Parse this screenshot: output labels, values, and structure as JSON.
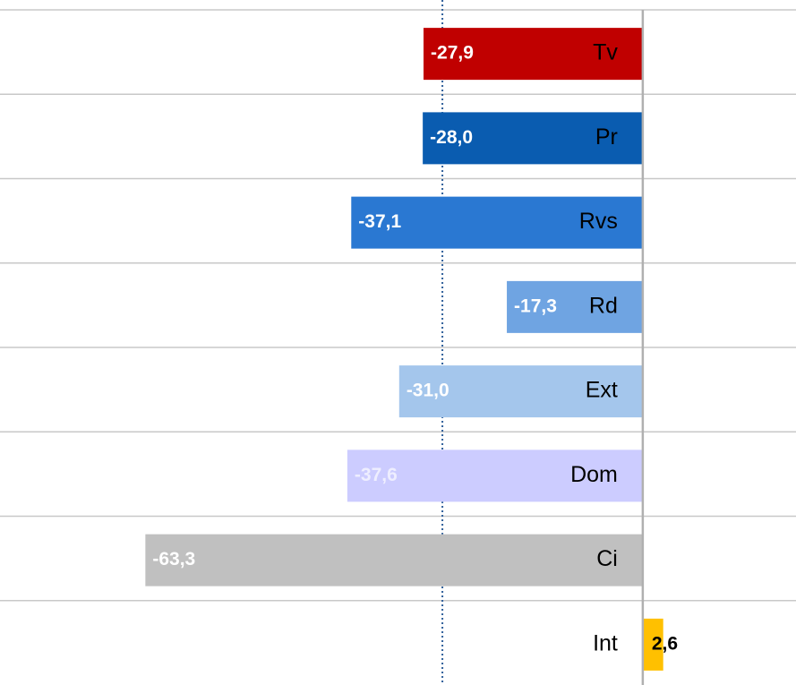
{
  "chart_data": {
    "type": "hbar",
    "categories": [
      "Tv",
      "Pr",
      "Rvs",
      "Rd",
      "Ext",
      "Dom",
      "Ci",
      "Int"
    ],
    "values": [
      -27.9,
      -28.0,
      -37.1,
      -17.3,
      -31.0,
      -37.6,
      -63.3,
      2.6
    ],
    "value_labels": [
      "-27,9",
      "-28,0",
      "-37,1",
      "-17,3",
      "-31,0",
      "-37,6",
      "-63,3",
      "2,6"
    ],
    "colors": [
      "#c00000",
      "#0a5cb0",
      "#2a78d2",
      "#6fa4e2",
      "#a4c6ec",
      "#ccccff",
      "#c0c0c0",
      "#ffc000"
    ],
    "label_colors": [
      "#ffffff",
      "#ffffff",
      "#ffffff",
      "#ffffff",
      "#ffffff",
      "#eeeeff",
      "#ffffff",
      "#000000"
    ],
    "reference_line": -25.5,
    "xlim": [
      -81.8,
      19.5
    ]
  }
}
